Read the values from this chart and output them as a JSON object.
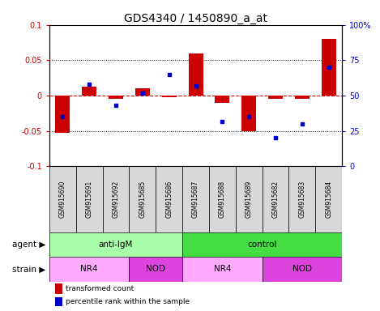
{
  "title": "GDS4340 / 1450890_a_at",
  "samples": [
    "GSM915690",
    "GSM915691",
    "GSM915692",
    "GSM915685",
    "GSM915686",
    "GSM915687",
    "GSM915688",
    "GSM915689",
    "GSM915682",
    "GSM915683",
    "GSM915684"
  ],
  "bar_values": [
    -0.052,
    0.013,
    -0.005,
    0.01,
    -0.002,
    0.06,
    -0.01,
    -0.05,
    -0.005,
    -0.005,
    0.08
  ],
  "dot_values": [
    35,
    58,
    43,
    52,
    65,
    57,
    32,
    35,
    20,
    30,
    70
  ],
  "bar_color": "#cc0000",
  "dot_color": "#0000cc",
  "ylim_left": [
    -0.1,
    0.1
  ],
  "ylim_right": [
    0,
    100
  ],
  "yticks_left": [
    -0.1,
    -0.05,
    0.0,
    0.05,
    0.1
  ],
  "yticks_right": [
    0,
    25,
    50,
    75,
    100
  ],
  "ytick_labels_left": [
    "-0.1",
    "-0.05",
    "0",
    "0.05",
    "0.1"
  ],
  "ytick_labels_right": [
    "0",
    "25",
    "50",
    "75",
    "100%"
  ],
  "hlines_dotted": [
    -0.05,
    0.05
  ],
  "zero_line_color": "#cc0000",
  "agent_groups": [
    {
      "label": "anti-IgM",
      "start": 0,
      "end": 5,
      "color": "#aaffaa"
    },
    {
      "label": "control",
      "start": 5,
      "end": 11,
      "color": "#44dd44"
    }
  ],
  "strain_groups": [
    {
      "label": "NR4",
      "start": 0,
      "end": 3,
      "color": "#ffaaff"
    },
    {
      "label": "NOD",
      "start": 3,
      "end": 5,
      "color": "#dd44dd"
    },
    {
      "label": "NR4",
      "start": 5,
      "end": 8,
      "color": "#ffaaff"
    },
    {
      "label": "NOD",
      "start": 8,
      "end": 11,
      "color": "#dd44dd"
    }
  ],
  "legend_items": [
    {
      "label": "transformed count",
      "color": "#cc0000",
      "marker": "s"
    },
    {
      "label": "percentile rank within the sample",
      "color": "#0000cc",
      "marker": "s"
    }
  ],
  "bar_width": 0.55,
  "agent_label": "agent",
  "strain_label": "strain",
  "left_tick_color": "#cc0000",
  "right_tick_color": "#0000cc",
  "sample_box_color": "#d8d8d8",
  "bg_color": "white",
  "title_fontsize": 10,
  "tick_fontsize": 7,
  "label_fontsize": 7.5,
  "sample_fontsize": 5.5
}
